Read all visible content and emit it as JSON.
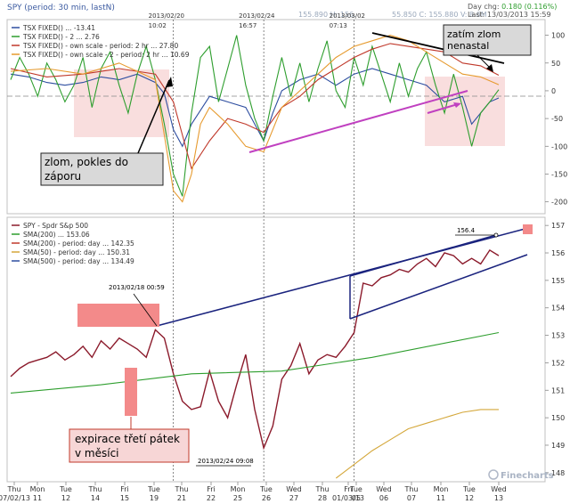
{
  "header": {
    "title": "SPY  (period: 30 min, lastN)",
    "daychg_label": "Day chg: ",
    "daychg_value": "0.180 (0.116%)",
    "stats_left": "155.890  H: 156.",
    "stats_right": "55.850  C: 155.880  V: 8.6M",
    "last": "Last: 13/03/2013 15:59"
  },
  "markers": [
    {
      "label_date": "2013/02/20",
      "label_time": "10:02",
      "index": 18
    },
    {
      "label_date": "2013/02/24",
      "label_time": "16:57",
      "index": 28
    },
    {
      "label_date": "2013/03/02",
      "label_time": "07:13",
      "index": 38
    }
  ],
  "x_axis": {
    "dow": [
      "Thu",
      "Mon",
      "Tue",
      "Thu",
      "Fri",
      "Tue",
      "Thu",
      "Fri",
      "Mon",
      "Tue",
      "Wed",
      "Thu",
      "Fri",
      "Tue",
      "Wed",
      "Thu",
      "Mon",
      "Tue",
      "Wed"
    ],
    "day": [
      "07/02/13",
      "11",
      "12",
      "14",
      "15",
      "19",
      "21",
      "22",
      "25",
      "26",
      "27",
      "28",
      "01/03/13",
      "05",
      "06",
      "07",
      "11",
      "12",
      "13"
    ]
  },
  "legend_top": [
    {
      "label": "TSX FIXED() ... -13.41",
      "color": "#2e4ea0"
    },
    {
      "label": "TSX FIXED() - 2 ... 2.76",
      "color": "#2e9e2e"
    },
    {
      "label": "TSX FIXED() - own scale - period: 2 hr ... 27.80",
      "color": "#c0392b"
    },
    {
      "label": "TSX FIXED() - own scale - 2 - period: 2 hr ... 10.69",
      "color": "#e69a2e"
    }
  ],
  "legend_bottom": [
    {
      "label": "SPY - Spdr S&p 500",
      "color": "#8b1a2b"
    },
    {
      "label": "SMA(200) ... 153.06",
      "color": "#2e9e2e"
    },
    {
      "label": "SMA(200) - period: day ... 142.35",
      "color": "#c0392b"
    },
    {
      "label": "SMA(50) - period: day ... 150.31",
      "color": "#d4a73a"
    },
    {
      "label": "SMA(500) - period: day ... 134.49",
      "color": "#2e4ea0"
    }
  ],
  "annotations": {
    "zlom_label": [
      "zlom, pokles do",
      "záporu"
    ],
    "zatim_label": [
      "zatím zlom",
      "nenastal"
    ],
    "expirace_label": [
      "expirace třetí pátek",
      "v měsíci"
    ],
    "high_tag": "2013/02/18 00:59",
    "low_tag": "2013/02/24 09:08",
    "price_tag": "156.4"
  },
  "watermark": "Finecharts",
  "chart_data": [
    {
      "type": "line",
      "title": "",
      "y_ticks": [
        100,
        50,
        0,
        -50,
        -100,
        -150,
        -200
      ],
      "ylim": [
        -215,
        125
      ],
      "x_range": [
        0,
        54
      ],
      "grid": false,
      "series": [
        {
          "name": "TSX FIXED()",
          "color": "#2e4ea0",
          "x": [
            0,
            2,
            4,
            6,
            8,
            10,
            12,
            14,
            16,
            17,
            18,
            19,
            20,
            22,
            24,
            26,
            27,
            28,
            29,
            30,
            32,
            34,
            36,
            38,
            40,
            42,
            44,
            46,
            48,
            50,
            51,
            52,
            53,
            54
          ],
          "y": [
            30,
            25,
            15,
            10,
            15,
            25,
            20,
            30,
            15,
            -5,
            -70,
            -100,
            -60,
            -10,
            -20,
            -30,
            -60,
            -90,
            -40,
            0,
            20,
            30,
            10,
            30,
            40,
            30,
            20,
            10,
            -20,
            -10,
            -60,
            -40,
            -20,
            -13
          ]
        },
        {
          "name": "TSX FIXED() - 2",
          "color": "#2e9e2e",
          "x": [
            0,
            1,
            2,
            3,
            4,
            5,
            6,
            7,
            8,
            9,
            10,
            11,
            12,
            13,
            14,
            15,
            16,
            17,
            18,
            19,
            20,
            21,
            22,
            23,
            24,
            25,
            26,
            27,
            28,
            29,
            30,
            31,
            32,
            33,
            34,
            35,
            36,
            37,
            38,
            39,
            40,
            41,
            42,
            43,
            44,
            45,
            46,
            47,
            48,
            49,
            50,
            51,
            52,
            53,
            54
          ],
          "y": [
            20,
            60,
            30,
            -10,
            50,
            20,
            -20,
            10,
            60,
            -30,
            40,
            70,
            10,
            -40,
            30,
            80,
            20,
            -60,
            -150,
            -190,
            -40,
            60,
            80,
            -20,
            40,
            100,
            10,
            -50,
            -90,
            -10,
            60,
            -10,
            50,
            -20,
            40,
            90,
            0,
            -30,
            60,
            10,
            80,
            30,
            -20,
            50,
            -10,
            40,
            70,
            10,
            -40,
            30,
            -30,
            -100,
            -40,
            -20,
            2
          ]
        },
        {
          "name": "TSX FIXED() - own scale - period: 2 hr",
          "color": "#c0392b",
          "x": [
            0,
            4,
            8,
            12,
            16,
            18,
            20,
            22,
            24,
            26,
            28,
            30,
            32,
            34,
            36,
            38,
            40,
            42,
            44,
            46,
            48,
            50,
            52,
            54
          ],
          "y": [
            40,
            25,
            30,
            40,
            30,
            -20,
            -140,
            -90,
            -50,
            -60,
            -75,
            -30,
            -10,
            20,
            40,
            60,
            75,
            85,
            80,
            75,
            70,
            50,
            45,
            28
          ]
        },
        {
          "name": "TSX FIXED() - own scale - 2 - period: 2 hr",
          "color": "#e69a2e",
          "x": [
            0,
            4,
            8,
            12,
            16,
            17,
            18,
            19,
            20,
            21,
            22,
            24,
            26,
            28,
            29,
            30,
            32,
            34,
            36,
            38,
            40,
            42,
            44,
            46,
            48,
            50,
            52,
            54
          ],
          "y": [
            35,
            40,
            30,
            50,
            20,
            -80,
            -180,
            -200,
            -150,
            -60,
            -30,
            -60,
            -100,
            -110,
            -70,
            -30,
            0,
            30,
            60,
            80,
            90,
            100,
            90,
            70,
            50,
            30,
            25,
            11
          ]
        }
      ]
    },
    {
      "type": "line",
      "title": "",
      "y_ticks": [
        157,
        156,
        155,
        154,
        153,
        152,
        151,
        150,
        149,
        148
      ],
      "ylim": [
        147.8,
        157.2
      ],
      "x_range": [
        0,
        54
      ],
      "grid": false,
      "series": [
        {
          "name": "SPY - Spdr S&p 500",
          "color": "#8b1a2b",
          "x": [
            0,
            1,
            2,
            3,
            4,
            5,
            6,
            7,
            8,
            9,
            10,
            11,
            12,
            13,
            14,
            15,
            16,
            17,
            18,
            19,
            20,
            21,
            22,
            23,
            24,
            25,
            26,
            27,
            28,
            29,
            30,
            31,
            32,
            33,
            34,
            35,
            36,
            37,
            38,
            39,
            40,
            41,
            42,
            43,
            44,
            45,
            46,
            47,
            48,
            49,
            50,
            51,
            52,
            53,
            54
          ],
          "y": [
            151.5,
            151.8,
            152.0,
            152.1,
            152.2,
            152.4,
            152.1,
            152.3,
            152.6,
            152.2,
            152.8,
            152.5,
            152.9,
            152.7,
            152.5,
            152.2,
            153.2,
            152.9,
            151.6,
            150.6,
            150.3,
            150.4,
            151.7,
            150.6,
            150.0,
            151.2,
            152.3,
            150.3,
            148.9,
            149.7,
            151.4,
            151.9,
            152.7,
            151.6,
            152.1,
            152.3,
            152.2,
            152.6,
            153.1,
            154.9,
            154.8,
            155.1,
            155.2,
            155.4,
            155.3,
            155.6,
            155.8,
            155.5,
            156.0,
            155.9,
            155.6,
            155.8,
            155.6,
            156.1,
            155.9
          ]
        },
        {
          "name": "SMA(200)",
          "color": "#2e9e2e",
          "x": [
            0,
            10,
            20,
            30,
            40,
            54
          ],
          "y": [
            150.9,
            151.2,
            151.6,
            151.7,
            152.2,
            153.1
          ]
        },
        {
          "name": "SMA(50)",
          "color": "#d4a73a",
          "x": [
            36,
            38,
            40,
            42,
            44,
            46,
            48,
            50,
            52,
            54
          ],
          "y": [
            147.8,
            148.3,
            148.8,
            149.2,
            149.6,
            149.8,
            150.0,
            150.2,
            150.3,
            150.3
          ]
        }
      ]
    }
  ]
}
